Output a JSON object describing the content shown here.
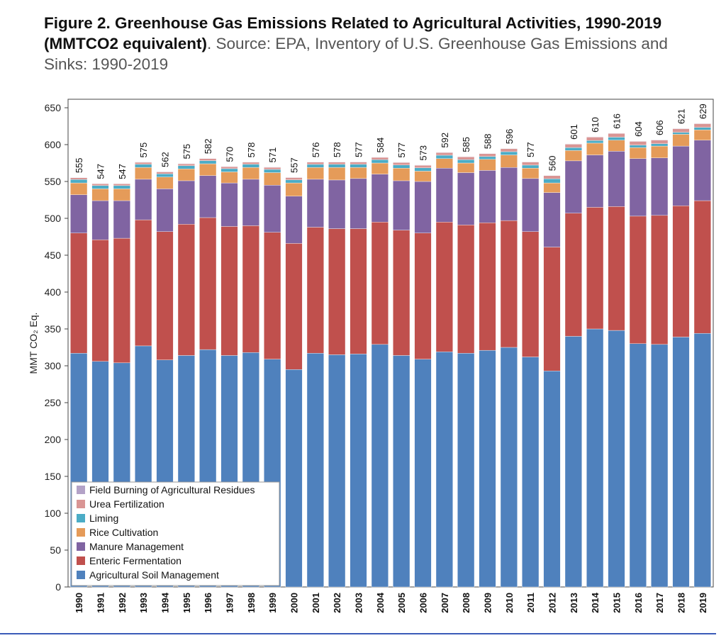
{
  "title": {
    "figure": "Figure 2. Greenhouse Gas Emissions Related to Agricultural Activities, 1990-2019",
    "units": "(MMTCO2 equivalent)",
    "source": ". Source: EPA, Inventory of U.S. Greenhouse Gas Emissions and Sinks: 1990-2019"
  },
  "chart_data": {
    "type": "bar",
    "stacked": true,
    "ylabel": "MMT CO₂ Eq.",
    "xlabel": "",
    "ylim": [
      0,
      650
    ],
    "yticks": [
      0,
      50,
      100,
      150,
      200,
      250,
      300,
      350,
      400,
      450,
      500,
      550,
      600,
      650
    ],
    "grid": false,
    "legend_position": "bottom-left",
    "categories": [
      "1990",
      "1991",
      "1992",
      "1993",
      "1994",
      "1995",
      "1996",
      "1997",
      "1998",
      "1999",
      "2000",
      "2001",
      "2002",
      "2003",
      "2004",
      "2005",
      "2006",
      "2007",
      "2008",
      "2009",
      "2010",
      "2011",
      "2012",
      "2013",
      "2014",
      "2015",
      "2016",
      "2017",
      "2018",
      "2019"
    ],
    "totals": [
      555,
      547,
      547,
      575,
      562,
      575,
      582,
      570,
      578,
      571,
      557,
      576,
      578,
      577,
      584,
      577,
      573,
      592,
      585,
      588,
      596,
      577,
      560,
      601,
      610,
      616,
      604,
      606,
      621,
      629
    ],
    "series": [
      {
        "name": "Agricultural Soil Management",
        "color": "#4f81bd",
        "values": [
          317,
          306,
          304,
          327,
          308,
          314,
          322,
          314,
          318,
          309,
          295,
          317,
          315,
          316,
          329,
          314,
          309,
          319,
          317,
          321,
          325,
          312,
          293,
          340,
          350,
          348,
          330,
          329,
          339,
          344
        ]
      },
      {
        "name": "Enteric Fermentation",
        "color": "#c0504d",
        "values": [
          163,
          165,
          169,
          171,
          174,
          178,
          179,
          175,
          172,
          172,
          171,
          171,
          171,
          170,
          166,
          170,
          171,
          176,
          174,
          173,
          172,
          170,
          168,
          167,
          165,
          168,
          173,
          175,
          178,
          180
        ]
      },
      {
        "name": "Manure Management",
        "color": "#8064a2",
        "values": [
          52,
          53,
          51,
          55,
          58,
          59,
          57,
          59,
          63,
          64,
          64,
          65,
          66,
          68,
          65,
          67,
          70,
          73,
          71,
          71,
          72,
          72,
          74,
          71,
          71,
          75,
          78,
          78,
          81,
          82
        ]
      },
      {
        "name": "Rice Cultivation",
        "color": "#e59b59",
        "values": [
          16,
          16,
          16,
          16,
          16,
          16,
          16,
          15,
          16,
          17,
          18,
          16,
          17,
          15,
          15,
          17,
          14,
          13,
          13,
          15,
          17,
          14,
          13,
          14,
          16,
          15,
          15,
          16,
          16,
          14
        ]
      },
      {
        "name": "Liming",
        "color": "#4bacc6",
        "values": [
          4.7,
          4.5,
          4.4,
          4.4,
          4.4,
          4.4,
          4.3,
          4.4,
          4.4,
          4.4,
          4.3,
          4.2,
          4.3,
          4.3,
          4.5,
          4.3,
          4.5,
          4.6,
          4.6,
          3.8,
          4.4,
          4.2,
          5.6,
          4.0,
          3.5,
          4.1,
          3.4,
          3.2,
          2.6,
          3.3
        ]
      },
      {
        "name": "Urea Fertilization",
        "color": "#d99594",
        "values": [
          2.4,
          2.4,
          2.4,
          2.6,
          2.6,
          2.6,
          2.7,
          2.7,
          2.7,
          2.8,
          3.0,
          3.0,
          3.0,
          3.1,
          3.2,
          3.5,
          3.5,
          3.7,
          3.8,
          3.9,
          4.0,
          4.2,
          4.3,
          4.6,
          4.7,
          5.0,
          5.0,
          5.0,
          5.0,
          5.1
        ]
      },
      {
        "name": "Field Burning of Agricultural Residues",
        "color": "#b3a2c7",
        "values": [
          0.5,
          0.5,
          0.5,
          0.5,
          0.5,
          0.5,
          0.5,
          0.5,
          0.5,
          0.5,
          0.5,
          0.5,
          0.5,
          0.5,
          0.5,
          0.5,
          0.5,
          0.5,
          0.5,
          0.5,
          0.5,
          0.5,
          0.5,
          0.5,
          0.5,
          0.5,
          0.5,
          0.5,
          0.5,
          0.5
        ]
      }
    ]
  }
}
